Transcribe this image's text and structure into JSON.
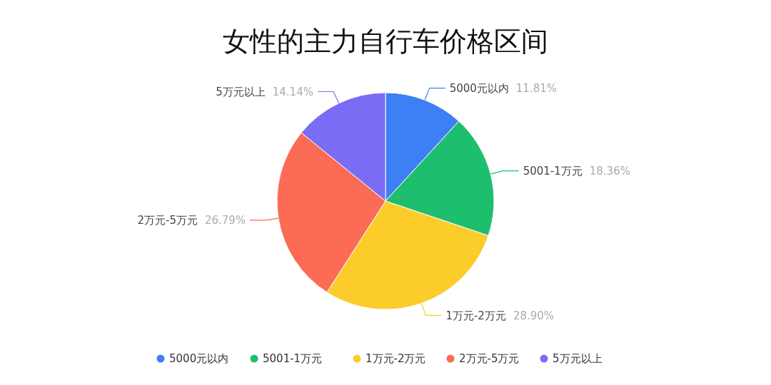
{
  "chart_data": {
    "type": "pie",
    "title": "女性的主力自行车价格区间",
    "categories": [
      "5000元以内",
      "5001-1万元",
      "1万元-2万元",
      "2万元-5万元",
      "5万元以上"
    ],
    "values": [
      11.81,
      18.36,
      28.9,
      26.79,
      14.14
    ],
    "value_labels": [
      "11.81%",
      "18.36%",
      "28.90%",
      "26.79%",
      "14.14%"
    ],
    "colors": [
      "#3d7ff5",
      "#1dbf6e",
      "#fccc2b",
      "#fb6b55",
      "#7b6cf6"
    ],
    "legend": "bottom"
  }
}
